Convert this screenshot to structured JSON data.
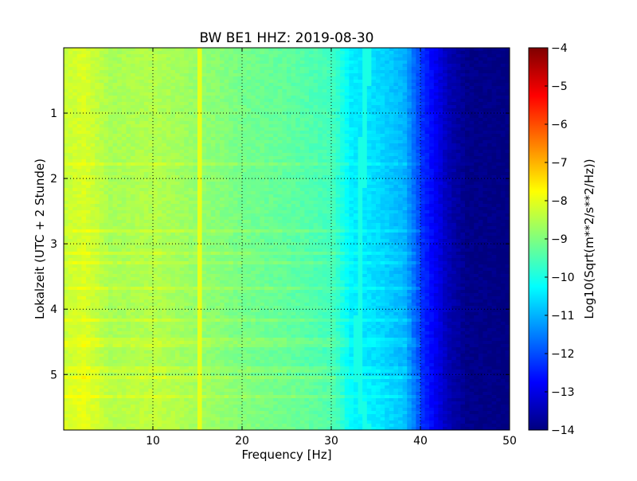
{
  "chart_data": {
    "type": "heatmap",
    "title": "BW BE1 HHZ: 2019-08-30",
    "xlabel": "Frequency [Hz]",
    "ylabel": "Lokalzeit (UTC + 2 Stunde)",
    "xlim": [
      0,
      50
    ],
    "ylim": [
      5.85,
      0.0
    ],
    "y_inverted": true,
    "x_ticks": [
      10,
      20,
      30,
      40,
      50
    ],
    "x_tick_labels": [
      "10",
      "20",
      "30",
      "40",
      "50"
    ],
    "y_ticks": [
      1,
      2,
      3,
      4,
      5
    ],
    "y_tick_labels": [
      "1",
      "2",
      "3",
      "4",
      "5"
    ],
    "grid": true,
    "colorbar": {
      "label": "Log10(Sqrt(m**2/s**2/Hz))",
      "range": [
        -14,
        -4
      ],
      "ticks": [
        -4,
        -5,
        -6,
        -7,
        -8,
        -9,
        -10,
        -11,
        -12,
        -13,
        -14
      ],
      "tick_labels": [
        "−4",
        "−5",
        "−6",
        "−7",
        "−8",
        "−9",
        "−10",
        "−11",
        "−12",
        "−13",
        "−14"
      ],
      "colormap": "jet"
    },
    "colormap_stops": [
      "#00007f",
      "#0000ff",
      "#007fff",
      "#00ffff",
      "#7fff7f",
      "#ffff00",
      "#ff7f00",
      "#ff0000",
      "#7f0000"
    ],
    "frequency_profile": {
      "freq_hz": [
        0,
        2,
        5,
        10,
        15,
        20,
        25,
        30,
        32,
        35,
        38,
        40,
        43,
        45,
        50
      ],
      "log10_amplitude": [
        -8.3,
        -8.1,
        -8.6,
        -8.5,
        -8.8,
        -9.1,
        -9.3,
        -9.6,
        -10.4,
        -10.6,
        -11.0,
        -12.3,
        -13.5,
        -13.9,
        -14.0
      ]
    },
    "spectral_line": {
      "freq_hz_at_time": [
        [
          0.0,
          33.8
        ],
        [
          2.5,
          33.0
        ],
        [
          5.0,
          32.8
        ],
        [
          5.5,
          33.2
        ],
        [
          5.85,
          33.8
        ]
      ],
      "log10_amplitude": -10.0
    },
    "band_line_hz": 15,
    "band_line_log10_amplitude": -8.0
  }
}
